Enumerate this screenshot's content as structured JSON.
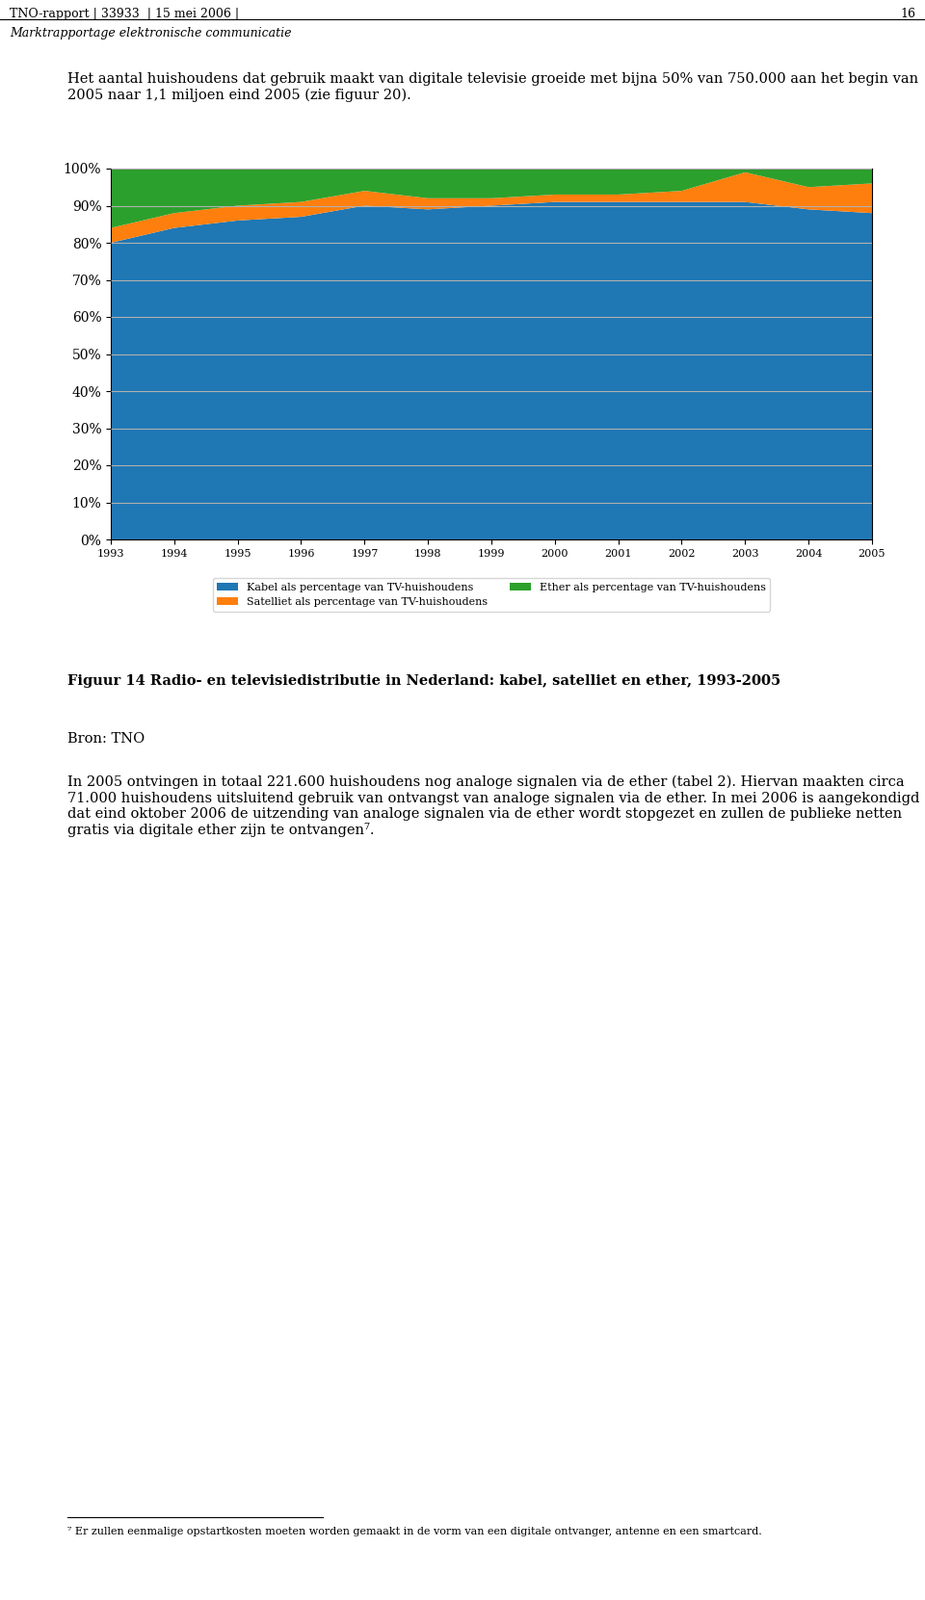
{
  "chart_data": {
    "type": "area",
    "stacked": true,
    "title": "Figuur 14 Radio- en televisiedistributie in Nederland: kabel, satelliet en ether, 1993-2005",
    "x": [
      1993,
      1994,
      1995,
      1996,
      1997,
      1998,
      1999,
      2000,
      2001,
      2002,
      2003,
      2004,
      2005
    ],
    "series": [
      {
        "name": "Kabel als percentage van TV-huishoudens",
        "values": [
          80,
          84,
          86,
          87,
          90,
          89,
          90,
          91,
          91,
          91,
          91,
          89,
          88
        ]
      },
      {
        "name": "Satelliet als percentage van TV-huishoudens",
        "values": [
          4,
          4,
          4,
          4,
          4,
          3,
          2,
          2,
          2,
          3,
          8,
          6,
          8
        ]
      },
      {
        "name": "Ether als percentage van TV-huishoudens",
        "values": [
          16,
          12,
          10,
          9,
          6,
          8,
          8,
          7,
          7,
          6,
          1,
          5,
          4
        ]
      }
    ],
    "xlim": [
      1993,
      2005
    ],
    "xticks": [
      1993,
      1994,
      1995,
      1996,
      1997,
      1998,
      1999,
      2000,
      2001,
      2002,
      2003,
      2004,
      2005
    ],
    "ylim": [
      0,
      100
    ],
    "yticks": [
      {
        "value": 0,
        "label": "0%"
      },
      {
        "value": 10,
        "label": "10%"
      },
      {
        "value": 20,
        "label": "20%"
      },
      {
        "value": 30,
        "label": "30%"
      },
      {
        "value": 40,
        "label": "40%"
      },
      {
        "value": 50,
        "label": "50%"
      },
      {
        "value": 60,
        "label": "60%"
      },
      {
        "value": 70,
        "label": "70%"
      },
      {
        "value": 80,
        "label": "80%"
      },
      {
        "value": 90,
        "label": "90%"
      },
      {
        "value": 100,
        "label": "100%"
      }
    ],
    "grid": true,
    "annotations": [
      "TNO-rapport | 33933  | 15 mei 2006 |",
      "16",
      "Marktrapportage elektronische communicatie",
      "Het aantal huishoudens dat gebruik maakt van digitale televisie groeide met bijna 50% van 750.000 aan het begin van 2005 naar 1,1 miljoen eind 2005 (zie figuur 20).",
      "Bron: TNO",
      "In 2005 ontvingen in totaal 221.600 huishoudens nog analoge signalen via de ether (tabel 2). Hiervan maakten circa 71.000 huishoudens uitsluitend gebruik van ontvangst van analoge signalen via de ether. In mei 2006 is aangekondigd dat eind oktober 2006 de uitzending van analoge signalen via de ether wordt stopgezet en zullen de publieke netten gratis via digitale ether zijn te ontvangen⁷.",
      "⁷ Er zullen eenmalige opstartkosten moeten worden gemaakt in de vorm van een digitale ontvanger, antenne en een smartcard."
    ]
  }
}
